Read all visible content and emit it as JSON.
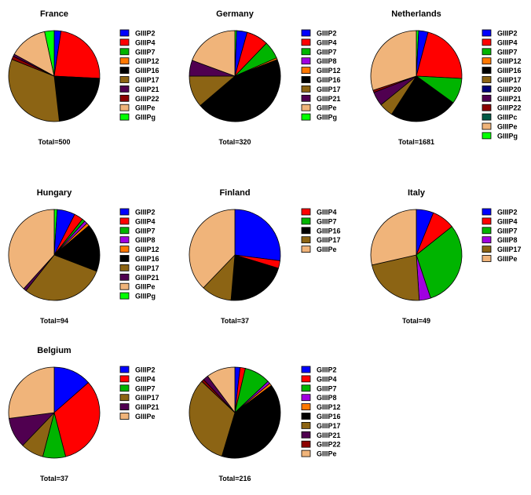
{
  "colors": {
    "GIIIP2": "#0000ff",
    "GIIIP4": "#ff0000",
    "GIIIP7": "#00b400",
    "GIIIP8": "#a000e0",
    "GIIIP12": "#ff7800",
    "GIIIP16": "#000000",
    "GIIIP17": "#8c6414",
    "GIIIP20": "#000078",
    "GIIIP21": "#500050",
    "GIIIP22": "#8c0000",
    "GIIIPc": "#005a46",
    "GIIIPe": "#f0b47a",
    "GIIIPg": "#00ff00"
  },
  "chart_data": [
    {
      "type": "pie",
      "title": "France",
      "total_label": "Total=500",
      "legend": [
        "GIIIP2",
        "GIIIP4",
        "GIIIP7",
        "GIIIP12",
        "GIIIP16",
        "GIIIP17",
        "GIIIP21",
        "GIIIP22",
        "GIIIPe",
        "GIIIPg"
      ],
      "slices": [
        {
          "name": "GIIIP2",
          "value": 12
        },
        {
          "name": "GIIIP4",
          "value": 117
        },
        {
          "name": "GIIIP16",
          "value": 112
        },
        {
          "name": "GIIIP17",
          "value": 164
        },
        {
          "name": "GIIIP22",
          "value": 6
        },
        {
          "name": "GIIIP21",
          "value": 4
        },
        {
          "name": "GIIIPe",
          "value": 68
        },
        {
          "name": "GIIIPg",
          "value": 17
        }
      ]
    },
    {
      "type": "pie",
      "title": "Germany",
      "total_label": "Total=320",
      "legend": [
        "GIIIP2",
        "GIIIP4",
        "GIIIP7",
        "GIIIP8",
        "GIIIP12",
        "GIIIP16",
        "GIIIP17",
        "GIIIP21",
        "GIIIPe",
        "GIIIPg"
      ],
      "slices": [
        {
          "name": "GIIIPg",
          "value": 2
        },
        {
          "name": "GIIIP2",
          "value": 12
        },
        {
          "name": "GIIIP4",
          "value": 25
        },
        {
          "name": "GIIIP7",
          "value": 20
        },
        {
          "name": "GIIIP12",
          "value": 2
        },
        {
          "name": "GIIIP16",
          "value": 143
        },
        {
          "name": "GIIIP17",
          "value": 36
        },
        {
          "name": "GIIIP21",
          "value": 18
        },
        {
          "name": "GIIIPe",
          "value": 62
        }
      ]
    },
    {
      "type": "pie",
      "title": "Netherlands",
      "total_label": "Total=1681",
      "legend": [
        "GIIIP2",
        "GIIIP4",
        "GIIIP7",
        "GIIIP12",
        "GIIIP16",
        "GIIIP17",
        "GIIIP20",
        "GIIIP21",
        "GIIIP22",
        "GIIIPc",
        "GIIIPe",
        "GIIIPg"
      ],
      "slices": [
        {
          "name": "GIIIPg",
          "value": 14
        },
        {
          "name": "GIIIP2",
          "value": 56
        },
        {
          "name": "GIIIP4",
          "value": 364
        },
        {
          "name": "GIIIP7",
          "value": 154
        },
        {
          "name": "GIIIP16",
          "value": 406
        },
        {
          "name": "GIIIP17",
          "value": 84
        },
        {
          "name": "GIIIP21",
          "value": 84
        },
        {
          "name": "GIIIP22",
          "value": 14
        },
        {
          "name": "GIIIPe",
          "value": 505
        }
      ]
    },
    {
      "type": "pie",
      "title": "Hungary",
      "total_label": "Total=94",
      "legend": [
        "GIIIP2",
        "GIIIP4",
        "GIIIP7",
        "GIIIP8",
        "GIIIP12",
        "GIIIP16",
        "GIIIP17",
        "GIIIP21",
        "GIIIPe",
        "GIIIPg"
      ],
      "slices": [
        {
          "name": "GIIIPg",
          "value": 1
        },
        {
          "name": "GIIIP2",
          "value": 6
        },
        {
          "name": "GIIIP4",
          "value": 3
        },
        {
          "name": "GIIIP7",
          "value": 1
        },
        {
          "name": "GIIIP8",
          "value": 1
        },
        {
          "name": "GIIIP12",
          "value": 1
        },
        {
          "name": "GIIIP16",
          "value": 16
        },
        {
          "name": "GIIIP17",
          "value": 28
        },
        {
          "name": "GIIIP21",
          "value": 1
        },
        {
          "name": "GIIIPe",
          "value": 36
        }
      ]
    },
    {
      "type": "pie",
      "title": "Finland",
      "total_label": "Total=37",
      "legend": [
        "GIIIP4",
        "GIIIP7",
        "GIIIP16",
        "GIIIP17",
        "GIIIPe"
      ],
      "slices": [
        {
          "name": "GIIIP2",
          "value": 10
        },
        {
          "name": "GIIIP4",
          "value": 1
        },
        {
          "name": "GIIIP16",
          "value": 8
        },
        {
          "name": "GIIIP17",
          "value": 4
        },
        {
          "name": "GIIIPe",
          "value": 14
        }
      ]
    },
    {
      "type": "pie",
      "title": "Italy",
      "total_label": "Total=49",
      "legend": [
        "GIIIP2",
        "GIIIP4",
        "GIIIP7",
        "GIIIP8",
        "GIIIP17",
        "GIIIPe"
      ],
      "slices": [
        {
          "name": "GIIIP2",
          "value": 3
        },
        {
          "name": "GIIIP4",
          "value": 4
        },
        {
          "name": "GIIIP7",
          "value": 15
        },
        {
          "name": "GIIIP8",
          "value": 2
        },
        {
          "name": "GIIIP17",
          "value": 11
        },
        {
          "name": "GIIIPe",
          "value": 14
        }
      ]
    },
    {
      "type": "pie",
      "title": "Belgium",
      "total_label": "Total=37",
      "legend": [
        "GIIIP2",
        "GIIIP4",
        "GIIIP7",
        "GIIIP17",
        "GIIIP21",
        "GIIIPe"
      ],
      "slices": [
        {
          "name": "GIIIP2",
          "value": 5
        },
        {
          "name": "GIIIP4",
          "value": 12
        },
        {
          "name": "GIIIP7",
          "value": 3
        },
        {
          "name": "GIIIP17",
          "value": 3
        },
        {
          "name": "GIIIP21",
          "value": 4
        },
        {
          "name": "GIIIPe",
          "value": 10
        }
      ]
    },
    {
      "type": "pie",
      "title": "",
      "total_label": "Total=216",
      "legend": [
        "GIIIP2",
        "GIIIP4",
        "GIIIP7",
        "GIIIP8",
        "GIIIP12",
        "GIIIP16",
        "GIIIP17",
        "GIIIP21",
        "GIIIP22",
        "GIIIPe"
      ],
      "slices": [
        {
          "name": "GIIIP2",
          "value": 4
        },
        {
          "name": "GIIIP4",
          "value": 4
        },
        {
          "name": "GIIIP7",
          "value": 20
        },
        {
          "name": "GIIIP8",
          "value": 2
        },
        {
          "name": "GIIIP12",
          "value": 2
        },
        {
          "name": "GIIIP16",
          "value": 86
        },
        {
          "name": "GIIIP17",
          "value": 70
        },
        {
          "name": "GIIIP22",
          "value": 2
        },
        {
          "name": "GIIIP21",
          "value": 4
        },
        {
          "name": "GIIIPe",
          "value": 22
        }
      ]
    }
  ]
}
